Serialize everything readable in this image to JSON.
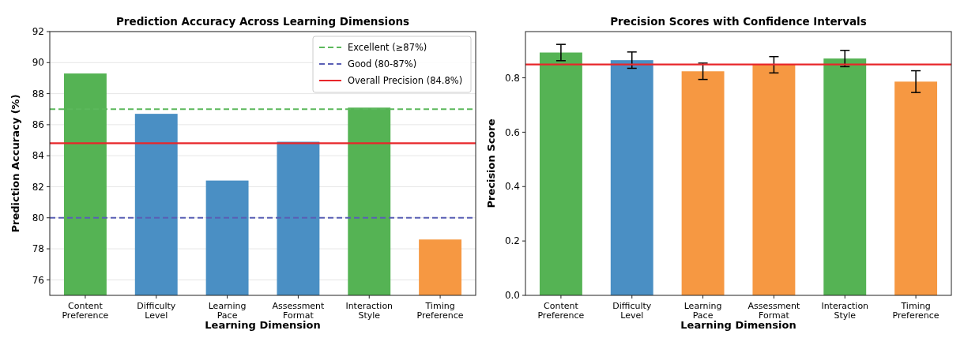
{
  "chart_data": [
    {
      "type": "bar",
      "title": "Prediction Accuracy Across Learning Dimensions",
      "xlabel": "Learning Dimension",
      "ylabel": "Prediction Accuracy (%)",
      "categories": [
        "Content Preference",
        "Difficulty Level",
        "Learning Pace",
        "Assessment Format",
        "Interaction Style",
        "Timing Preference"
      ],
      "values": [
        89.3,
        86.7,
        82.4,
        84.9,
        87.1,
        78.6
      ],
      "colors": [
        "#55b354",
        "#4a8fc4",
        "#4a8fc4",
        "#4a8fc4",
        "#55b354",
        "#f69842"
      ],
      "ylim": [
        75,
        92
      ],
      "yticks": [
        76,
        78,
        80,
        82,
        84,
        86,
        88,
        90,
        92
      ],
      "grid": "y",
      "ref_lines": [
        {
          "axis": "y",
          "value": 87,
          "label": "Excellent (≥87%)",
          "color": "#5cb85c",
          "line_style": "dashed"
        },
        {
          "axis": "y",
          "value": 80,
          "label": "Good (80-87%)",
          "color": "#5a5fb5",
          "line_style": "dashed"
        },
        {
          "axis": "y",
          "value": 84.8,
          "label": "Overall Precision (84.8%)",
          "color": "#e8262a",
          "line_style": "solid"
        }
      ],
      "legend": "top right"
    },
    {
      "type": "bar",
      "title": "Precision Scores with Confidence Intervals",
      "xlabel": "Learning Dimension",
      "ylabel": "Precision Score",
      "categories": [
        "Content Preference",
        "Difficulty Level",
        "Learning Pace",
        "Assessment Format",
        "Interaction Style",
        "Timing Preference"
      ],
      "values": [
        0.893,
        0.865,
        0.824,
        0.848,
        0.871,
        0.786
      ],
      "errors": [
        0.03,
        0.03,
        0.03,
        0.03,
        0.03,
        0.04
      ],
      "colors": [
        "#55b354",
        "#4a8fc4",
        "#f69842",
        "#f69842",
        "#55b354",
        "#f69842"
      ],
      "ylim": [
        0,
        0.97
      ],
      "yticks": [
        {
          "value": 0,
          "label": "0.0"
        },
        0.2,
        0.4,
        0.6,
        0.8
      ],
      "ref_lines": [
        {
          "axis": "y",
          "value": 0.849,
          "color": "#e8262a",
          "line_style": "solid"
        }
      ]
    }
  ]
}
